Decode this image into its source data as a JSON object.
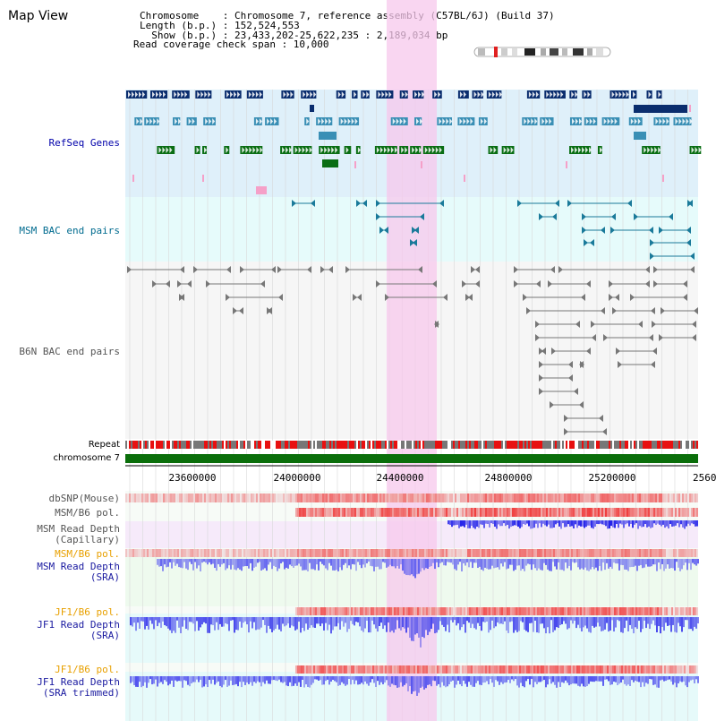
{
  "view": {
    "title": "Map View",
    "info_lines": [
      "Chromosome    : Chromosome 7, reference assembly (C57BL/6J) (Build 37)",
      "Length (b.p.) : 152,524,553",
      "  Show (b.p.) : 23,433,202-25,622,235 : 2,189,034 bp",
      "Read coverage check span : 10,000"
    ]
  },
  "tracks": {
    "refseq": "RefSeq Genes",
    "msm_bac": "MSM BAC end pairs",
    "b6n_bac": "B6N BAC end pairs",
    "repeat": "Repeat",
    "chromosome": "chromosome 7",
    "dbsnp": "dbSNP(Mouse)",
    "msm_b6_pol_1": "MSM/B6 pol.",
    "msm_depth_cap_1": "MSM Read Depth",
    "msm_depth_cap_2": "(Capillary)",
    "msm_b6_pol_2": "MSM/B6 pol.",
    "msm_depth_sra_1": "MSM Read Depth",
    "msm_depth_sra_2": "(SRA)",
    "jf1_b6_pol_1": "JF1/B6 pol.",
    "jf1_depth_sra_1": "JF1 Read Depth",
    "jf1_depth_sra_2": "(SRA)",
    "jf1_b6_pol_2": "JF1/B6 pol.",
    "jf1_depth_trim_1": "JF1 Read Depth",
    "jf1_depth_trim_2": "(SRA trimmed)"
  },
  "axis": {
    "ticks": [
      "23600000",
      "24000000",
      "24400000",
      "24800000",
      "25200000",
      "2560"
    ]
  },
  "colors": {
    "refseq_bg": "#dff0fa",
    "bac_bg": "#e6fbfb",
    "highlight": "#f7c8ec",
    "gene_navy": "#0a2d6e",
    "gene_teal": "#3a8fb5",
    "gene_green": "#0a6e14",
    "chromosome_bar": "#0a6e0a",
    "repeat_red": "#e81010",
    "repeat_gray": "#777777",
    "depth_blue": "#3030e0"
  }
}
